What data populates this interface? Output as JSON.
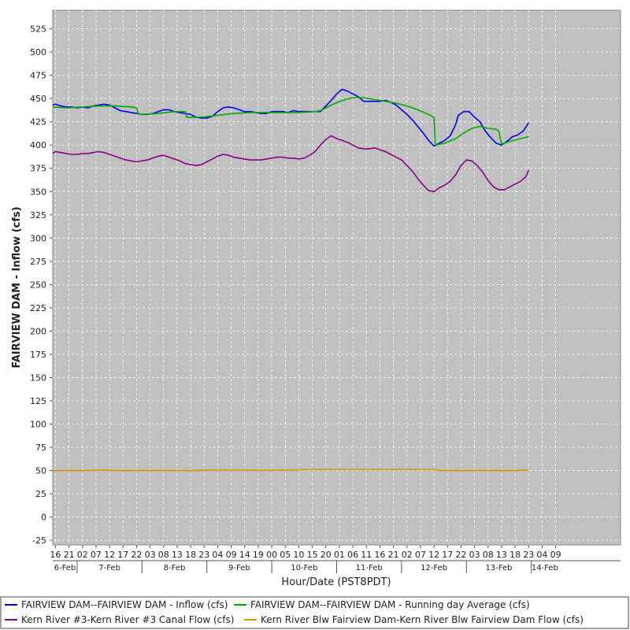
{
  "chart_data": {
    "type": "line",
    "xlabel": "Hour/Date (PST8PDT)",
    "ylabel": "FAIRVIEW DAM - Inflow (cfs)",
    "ylim": [
      -30,
      545
    ],
    "xlim": [
      15,
      225
    ],
    "yticks": [
      -25,
      0,
      25,
      50,
      75,
      100,
      125,
      150,
      175,
      200,
      225,
      250,
      275,
      300,
      325,
      350,
      375,
      400,
      425,
      450,
      475,
      500,
      525
    ],
    "grid": true,
    "background": "#c0c0c0",
    "legend_position": "bottom",
    "xticks": [
      {
        "x": 16,
        "label": "16"
      },
      {
        "x": 21,
        "label": "21"
      },
      {
        "x": 26,
        "label": "02"
      },
      {
        "x": 31,
        "label": "07"
      },
      {
        "x": 36,
        "label": "12"
      },
      {
        "x": 41,
        "label": "17"
      },
      {
        "x": 46,
        "label": "22"
      },
      {
        "x": 51,
        "label": "03"
      },
      {
        "x": 56,
        "label": "08"
      },
      {
        "x": 61,
        "label": "13"
      },
      {
        "x": 66,
        "label": "18"
      },
      {
        "x": 71,
        "label": "23"
      },
      {
        "x": 76,
        "label": "04"
      },
      {
        "x": 81,
        "label": "09"
      },
      {
        "x": 86,
        "label": "14"
      },
      {
        "x": 91,
        "label": "19"
      },
      {
        "x": 96,
        "label": "00"
      },
      {
        "x": 101,
        "label": "05"
      },
      {
        "x": 106,
        "label": "10"
      },
      {
        "x": 111,
        "label": "15"
      },
      {
        "x": 116,
        "label": "20"
      },
      {
        "x": 121,
        "label": "01"
      },
      {
        "x": 126,
        "label": "06"
      },
      {
        "x": 131,
        "label": "11"
      },
      {
        "x": 136,
        "label": "16"
      },
      {
        "x": 141,
        "label": "21"
      },
      {
        "x": 146,
        "label": "02"
      },
      {
        "x": 151,
        "label": "07"
      },
      {
        "x": 156,
        "label": "12"
      },
      {
        "x": 161,
        "label": "17"
      },
      {
        "x": 166,
        "label": "22"
      },
      {
        "x": 171,
        "label": "03"
      },
      {
        "x": 176,
        "label": "08"
      },
      {
        "x": 181,
        "label": "13"
      },
      {
        "x": 186,
        "label": "18"
      },
      {
        "x": 191,
        "label": "23"
      },
      {
        "x": 196,
        "label": "04"
      },
      {
        "x": 201,
        "label": "09"
      }
    ],
    "dates": [
      {
        "start": 15,
        "end": 24,
        "label": "6-Feb"
      },
      {
        "start": 24,
        "end": 48,
        "label": "7-Feb"
      },
      {
        "start": 48,
        "end": 72,
        "label": "8-Feb"
      },
      {
        "start": 72,
        "end": 96,
        "label": "9-Feb"
      },
      {
        "start": 96,
        "end": 120,
        "label": "10-Feb"
      },
      {
        "start": 120,
        "end": 144,
        "label": "11-Feb"
      },
      {
        "start": 144,
        "end": 168,
        "label": "12-Feb"
      },
      {
        "start": 168,
        "end": 192,
        "label": "13-Feb"
      },
      {
        "start": 192,
        "end": 202,
        "label": "14-Feb"
      }
    ],
    "series": [
      {
        "name": "FAIRVIEW DAM--FAIRVIEW DAM - Inflow  (cfs)",
        "color": "#0000ee",
        "points": [
          [
            15,
            443
          ],
          [
            16,
            444
          ],
          [
            18,
            442
          ],
          [
            20,
            441
          ],
          [
            22,
            441
          ],
          [
            24,
            440
          ],
          [
            26,
            441
          ],
          [
            28,
            440
          ],
          [
            30,
            442
          ],
          [
            32,
            443
          ],
          [
            34,
            444
          ],
          [
            36,
            443
          ],
          [
            38,
            440
          ],
          [
            40,
            437
          ],
          [
            42,
            436
          ],
          [
            44,
            435
          ],
          [
            46,
            434
          ],
          [
            48,
            433
          ],
          [
            50,
            433
          ],
          [
            52,
            434
          ],
          [
            54,
            436
          ],
          [
            56,
            438
          ],
          [
            58,
            438
          ],
          [
            60,
            436
          ],
          [
            62,
            435
          ],
          [
            64,
            434
          ],
          [
            66,
            433
          ],
          [
            68,
            430
          ],
          [
            70,
            429
          ],
          [
            72,
            429
          ],
          [
            74,
            431
          ],
          [
            76,
            436
          ],
          [
            78,
            440
          ],
          [
            80,
            441
          ],
          [
            82,
            440
          ],
          [
            84,
            438
          ],
          [
            86,
            436
          ],
          [
            88,
            436
          ],
          [
            90,
            435
          ],
          [
            92,
            434
          ],
          [
            94,
            434
          ],
          [
            96,
            436
          ],
          [
            98,
            436
          ],
          [
            100,
            436
          ],
          [
            102,
            435
          ],
          [
            104,
            437
          ],
          [
            106,
            436
          ],
          [
            108,
            436
          ],
          [
            110,
            436
          ],
          [
            112,
            436
          ],
          [
            114,
            436
          ],
          [
            116,
            442
          ],
          [
            118,
            448
          ],
          [
            120,
            455
          ],
          [
            122,
            460
          ],
          [
            124,
            458
          ],
          [
            126,
            455
          ],
          [
            128,
            452
          ],
          [
            130,
            447
          ],
          [
            132,
            447
          ],
          [
            134,
            447
          ],
          [
            136,
            447
          ],
          [
            138,
            448
          ],
          [
            140,
            446
          ],
          [
            142,
            443
          ],
          [
            144,
            438
          ],
          [
            146,
            433
          ],
          [
            148,
            427
          ],
          [
            150,
            420
          ],
          [
            152,
            413
          ],
          [
            154,
            405
          ],
          [
            155,
            402
          ],
          [
            156,
            399
          ],
          [
            158,
            402
          ],
          [
            160,
            405
          ],
          [
            162,
            410
          ],
          [
            164,
            422
          ],
          [
            165,
            432
          ],
          [
            167,
            436
          ],
          [
            169,
            436
          ],
          [
            171,
            430
          ],
          [
            173,
            425
          ],
          [
            175,
            415
          ],
          [
            177,
            408
          ],
          [
            179,
            402
          ],
          [
            181,
            400
          ],
          [
            183,
            404
          ],
          [
            185,
            409
          ],
          [
            187,
            411
          ],
          [
            189,
            415
          ],
          [
            191,
            424
          ]
        ]
      },
      {
        "name": "FAIRVIEW DAM--FAIRVIEW DAM - Running day Average  (cfs)",
        "color": "#00aa00",
        "points": [
          [
            15,
            441
          ],
          [
            20,
            440
          ],
          [
            26,
            441
          ],
          [
            32,
            442
          ],
          [
            38,
            442
          ],
          [
            44,
            441
          ],
          [
            46,
            440
          ],
          [
            46.5,
            434
          ],
          [
            48,
            433
          ],
          [
            54,
            434
          ],
          [
            60,
            436
          ],
          [
            64,
            436
          ],
          [
            64.5,
            430
          ],
          [
            70,
            430
          ],
          [
            76,
            432
          ],
          [
            82,
            434
          ],
          [
            88,
            435
          ],
          [
            94,
            435
          ],
          [
            100,
            435
          ],
          [
            106,
            435
          ],
          [
            112,
            436
          ],
          [
            114,
            437
          ],
          [
            118,
            443
          ],
          [
            122,
            448
          ],
          [
            126,
            451
          ],
          [
            130,
            451
          ],
          [
            134,
            449
          ],
          [
            138,
            447
          ],
          [
            142,
            445
          ],
          [
            146,
            442
          ],
          [
            150,
            438
          ],
          [
            154,
            433
          ],
          [
            156,
            430
          ],
          [
            156.5,
            400
          ],
          [
            160,
            402
          ],
          [
            164,
            407
          ],
          [
            167,
            413
          ],
          [
            170,
            418
          ],
          [
            173,
            420
          ],
          [
            176,
            418
          ],
          [
            179,
            417
          ],
          [
            180,
            415
          ],
          [
            181,
            401
          ],
          [
            184,
            404
          ],
          [
            188,
            407
          ],
          [
            191,
            409
          ]
        ]
      },
      {
        "name": "Kern River #3-Kern River #3 Canal Flow  (cfs)",
        "color": "#880088",
        "points": [
          [
            15,
            391
          ],
          [
            16,
            393
          ],
          [
            18,
            392
          ],
          [
            20,
            391
          ],
          [
            22,
            390
          ],
          [
            24,
            390
          ],
          [
            26,
            391
          ],
          [
            28,
            391
          ],
          [
            30,
            392
          ],
          [
            32,
            393
          ],
          [
            34,
            392
          ],
          [
            36,
            390
          ],
          [
            38,
            388
          ],
          [
            40,
            386
          ],
          [
            42,
            384
          ],
          [
            44,
            383
          ],
          [
            46,
            382
          ],
          [
            48,
            383
          ],
          [
            50,
            384
          ],
          [
            52,
            386
          ],
          [
            54,
            388
          ],
          [
            56,
            389
          ],
          [
            58,
            387
          ],
          [
            60,
            385
          ],
          [
            62,
            383
          ],
          [
            64,
            380
          ],
          [
            66,
            379
          ],
          [
            68,
            378
          ],
          [
            70,
            379
          ],
          [
            72,
            382
          ],
          [
            74,
            385
          ],
          [
            76,
            388
          ],
          [
            78,
            390
          ],
          [
            80,
            389
          ],
          [
            82,
            387
          ],
          [
            84,
            386
          ],
          [
            86,
            385
          ],
          [
            88,
            384
          ],
          [
            90,
            384
          ],
          [
            92,
            384
          ],
          [
            94,
            385
          ],
          [
            96,
            386
          ],
          [
            98,
            387
          ],
          [
            100,
            387
          ],
          [
            102,
            386
          ],
          [
            104,
            386
          ],
          [
            106,
            385
          ],
          [
            108,
            386
          ],
          [
            110,
            389
          ],
          [
            112,
            393
          ],
          [
            114,
            400
          ],
          [
            116,
            406
          ],
          [
            118,
            410
          ],
          [
            120,
            407
          ],
          [
            122,
            405
          ],
          [
            124,
            403
          ],
          [
            126,
            400
          ],
          [
            128,
            397
          ],
          [
            130,
            396
          ],
          [
            132,
            396
          ],
          [
            134,
            397
          ],
          [
            136,
            395
          ],
          [
            138,
            393
          ],
          [
            140,
            390
          ],
          [
            142,
            387
          ],
          [
            144,
            384
          ],
          [
            146,
            378
          ],
          [
            148,
            372
          ],
          [
            150,
            364
          ],
          [
            152,
            357
          ],
          [
            154,
            351
          ],
          [
            156,
            350
          ],
          [
            158,
            354
          ],
          [
            160,
            357
          ],
          [
            162,
            361
          ],
          [
            164,
            368
          ],
          [
            166,
            378
          ],
          [
            168,
            384
          ],
          [
            170,
            383
          ],
          [
            172,
            378
          ],
          [
            174,
            371
          ],
          [
            176,
            362
          ],
          [
            178,
            355
          ],
          [
            180,
            352
          ],
          [
            182,
            352
          ],
          [
            184,
            355
          ],
          [
            186,
            358
          ],
          [
            188,
            361
          ],
          [
            190,
            366
          ],
          [
            191,
            373
          ]
        ]
      },
      {
        "name": "Kern River Blw Fairview Dam-Kern River Blw Fairview Dam Flow  (cfs)",
        "color": "#cc9900",
        "points": [
          [
            15,
            50
          ],
          [
            20,
            50
          ],
          [
            26,
            50
          ],
          [
            32,
            50.5
          ],
          [
            38,
            50
          ],
          [
            44,
            50
          ],
          [
            50,
            50
          ],
          [
            56,
            50
          ],
          [
            62,
            50
          ],
          [
            68,
            50
          ],
          [
            74,
            50.5
          ],
          [
            80,
            50.5
          ],
          [
            86,
            50.5
          ],
          [
            92,
            50
          ],
          [
            98,
            50.5
          ],
          [
            104,
            50.5
          ],
          [
            110,
            51
          ],
          [
            116,
            51
          ],
          [
            122,
            51
          ],
          [
            128,
            51
          ],
          [
            134,
            51
          ],
          [
            140,
            51
          ],
          [
            146,
            51
          ],
          [
            152,
            51
          ],
          [
            156,
            51
          ],
          [
            158,
            50
          ],
          [
            162,
            50
          ],
          [
            166,
            50
          ],
          [
            170,
            50
          ],
          [
            174,
            50
          ],
          [
            178,
            50
          ],
          [
            182,
            50
          ],
          [
            186,
            50
          ],
          [
            191,
            50.5
          ]
        ]
      }
    ]
  }
}
